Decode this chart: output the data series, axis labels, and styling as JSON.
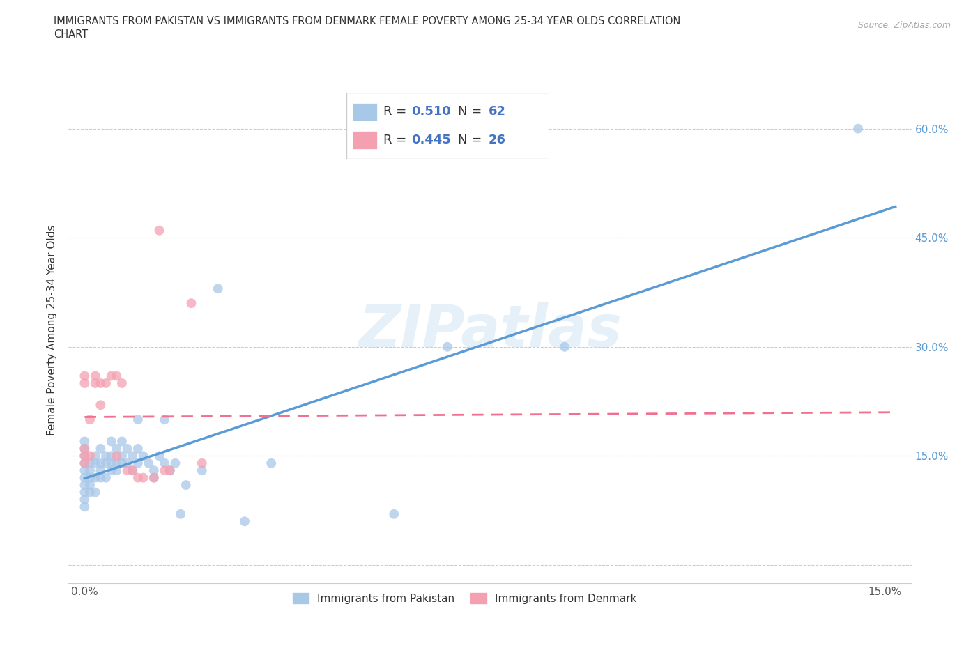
{
  "title_line1": "IMMIGRANTS FROM PAKISTAN VS IMMIGRANTS FROM DENMARK FEMALE POVERTY AMONG 25-34 YEAR OLDS CORRELATION",
  "title_line2": "CHART",
  "source_text": "Source: ZipAtlas.com",
  "ylabel": "Female Poverty Among 25-34 Year Olds",
  "watermark": "ZIPatlas",
  "xlim": [
    -0.003,
    0.155
  ],
  "ylim": [
    -0.025,
    0.67
  ],
  "pakistan_color": "#a8c8e8",
  "denmark_color": "#f4a0b0",
  "pakistan_line_color": "#5b9bd5",
  "denmark_line_color": "#f07090",
  "R_pakistan": 0.51,
  "N_pakistan": 62,
  "R_denmark": 0.445,
  "N_denmark": 26,
  "legend_label_pakistan": "Immigrants from Pakistan",
  "legend_label_denmark": "Immigrants from Denmark",
  "legend_R_N_color": "#4472c4",
  "pakistan_x": [
    0.0,
    0.0,
    0.0,
    0.0,
    0.0,
    0.0,
    0.0,
    0.0,
    0.0,
    0.0,
    0.001,
    0.001,
    0.001,
    0.001,
    0.001,
    0.002,
    0.002,
    0.002,
    0.002,
    0.003,
    0.003,
    0.003,
    0.003,
    0.004,
    0.004,
    0.004,
    0.005,
    0.005,
    0.005,
    0.005,
    0.006,
    0.006,
    0.006,
    0.007,
    0.007,
    0.007,
    0.008,
    0.008,
    0.009,
    0.009,
    0.01,
    0.01,
    0.01,
    0.011,
    0.012,
    0.013,
    0.013,
    0.014,
    0.015,
    0.015,
    0.016,
    0.017,
    0.018,
    0.019,
    0.022,
    0.025,
    0.03,
    0.035,
    0.058,
    0.068,
    0.09,
    0.145
  ],
  "pakistan_y": [
    0.08,
    0.1,
    0.12,
    0.13,
    0.14,
    0.15,
    0.16,
    0.17,
    0.11,
    0.09,
    0.1,
    0.11,
    0.13,
    0.14,
    0.12,
    0.1,
    0.12,
    0.14,
    0.15,
    0.12,
    0.13,
    0.14,
    0.16,
    0.12,
    0.14,
    0.15,
    0.13,
    0.14,
    0.15,
    0.17,
    0.13,
    0.14,
    0.16,
    0.14,
    0.15,
    0.17,
    0.14,
    0.16,
    0.15,
    0.13,
    0.14,
    0.16,
    0.2,
    0.15,
    0.14,
    0.12,
    0.13,
    0.15,
    0.14,
    0.2,
    0.13,
    0.14,
    0.07,
    0.11,
    0.13,
    0.38,
    0.06,
    0.14,
    0.07,
    0.3,
    0.3,
    0.6
  ],
  "denmark_x": [
    0.0,
    0.0,
    0.0,
    0.0,
    0.0,
    0.001,
    0.001,
    0.002,
    0.002,
    0.003,
    0.003,
    0.004,
    0.005,
    0.006,
    0.006,
    0.007,
    0.008,
    0.009,
    0.01,
    0.011,
    0.013,
    0.014,
    0.015,
    0.016,
    0.02,
    0.022
  ],
  "denmark_y": [
    0.14,
    0.15,
    0.25,
    0.26,
    0.16,
    0.15,
    0.2,
    0.25,
    0.26,
    0.25,
    0.22,
    0.25,
    0.26,
    0.26,
    0.15,
    0.25,
    0.13,
    0.13,
    0.12,
    0.12,
    0.12,
    0.46,
    0.13,
    0.13,
    0.36,
    0.14
  ]
}
